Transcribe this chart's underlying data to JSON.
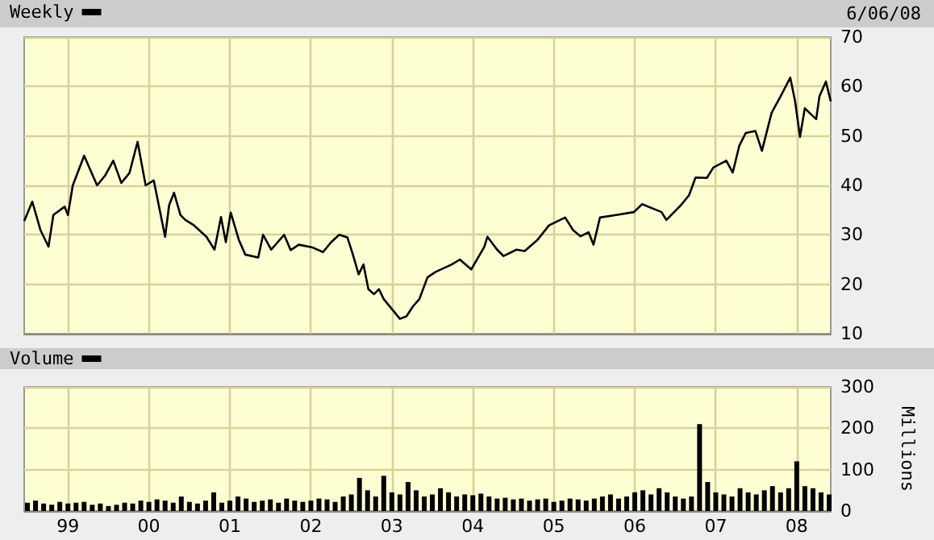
{
  "chart_data": [
    {
      "type": "line",
      "annotations": [
        "6/06/08"
      ],
      "legend": "top left",
      "grid": true,
      "tick_labels": "y",
      "xlim": [
        1998.46,
        2008.42
      ],
      "xticks": [
        {
          "value": 1999,
          "label": null
        },
        {
          "value": 2000,
          "label": null
        },
        {
          "value": 2001,
          "label": null
        },
        {
          "value": 2002,
          "label": null
        },
        {
          "value": 2003,
          "label": null
        },
        {
          "value": 2004,
          "label": null
        },
        {
          "value": 2005,
          "label": null
        },
        {
          "value": 2006,
          "label": null
        },
        {
          "value": 2007,
          "label": null
        },
        {
          "value": 2008,
          "label": null
        }
      ],
      "ylim": [
        10,
        70
      ],
      "yticks": [
        10,
        20,
        30,
        40,
        50,
        60,
        70
      ],
      "series": [
        {
          "name": "Weekly",
          "color": "#000000",
          "x": [
            1998.46,
            1998.56,
            1998.66,
            1998.76,
            1998.82,
            1998.96,
            1999.0,
            1999.06,
            1999.2,
            1999.36,
            1999.46,
            1999.56,
            1999.66,
            1999.76,
            1999.86,
            1999.96,
            2000.06,
            2000.2,
            2000.25,
            2000.31,
            2000.39,
            2000.45,
            2000.55,
            2000.71,
            2000.81,
            2000.89,
            2000.95,
            2001.01,
            2001.11,
            2001.19,
            2001.35,
            2001.41,
            2001.51,
            2001.67,
            2001.75,
            2001.85,
            2002.01,
            2002.15,
            2002.25,
            2002.35,
            2002.45,
            2002.51,
            2002.59,
            2002.65,
            2002.71,
            2002.78,
            2002.84,
            2002.9,
            2003.0,
            2003.1,
            2003.18,
            2003.26,
            2003.34,
            2003.44,
            2003.54,
            2003.74,
            2003.84,
            2003.98,
            2004.14,
            2004.18,
            2004.3,
            2004.38,
            2004.54,
            2004.64,
            2004.8,
            2004.94,
            2005.14,
            2005.24,
            2005.33,
            2005.43,
            2005.49,
            2005.57,
            2005.77,
            2005.99,
            2006.09,
            2006.33,
            2006.39,
            2006.57,
            2006.67,
            2006.75,
            2006.89,
            2006.97,
            2007.13,
            2007.21,
            2007.29,
            2007.37,
            2007.49,
            2007.57,
            2007.69,
            2007.8,
            2007.92,
            2007.98,
            2008.04,
            2008.1,
            2008.24,
            2008.28,
            2008.36,
            2008.42
          ],
          "values": [
            32.8,
            36.7,
            31,
            27.6,
            34,
            35.7,
            34,
            40,
            46,
            40,
            42,
            45,
            40.5,
            42.5,
            48.8,
            40,
            41,
            29.6,
            36,
            38.5,
            34,
            33,
            32,
            29.6,
            27,
            33.6,
            28.5,
            34.5,
            29,
            26,
            25.4,
            30,
            27,
            30,
            26.9,
            28,
            27.5,
            26.5,
            28.5,
            30,
            29.5,
            26.5,
            22,
            24,
            19,
            18,
            19,
            17,
            15,
            13,
            13.5,
            15.5,
            17,
            21.4,
            22.5,
            24,
            25,
            23,
            27.5,
            29.6,
            27,
            25.7,
            27,
            26.7,
            29,
            31.9,
            33.5,
            30.9,
            29.7,
            30.5,
            28,
            33.5,
            34,
            34.6,
            36.2,
            34.6,
            33,
            36,
            38,
            41.6,
            41.5,
            43.6,
            45,
            42.6,
            48,
            50.6,
            51,
            47,
            54.7,
            58,
            61.8,
            57,
            49.8,
            55.6,
            53.4,
            58,
            61,
            57
          ]
        }
      ]
    },
    {
      "type": "bar",
      "ylabel": "Millions",
      "legend": "top left",
      "grid": true,
      "xlim": [
        1998.46,
        2008.42
      ],
      "xticks": [
        {
          "value": 1999,
          "label": "99"
        },
        {
          "value": 2000,
          "label": "00"
        },
        {
          "value": 2001,
          "label": "01"
        },
        {
          "value": 2002,
          "label": "02"
        },
        {
          "value": 2003,
          "label": "03"
        },
        {
          "value": 2004,
          "label": "04"
        },
        {
          "value": 2005,
          "label": "05"
        },
        {
          "value": 2006,
          "label": "06"
        },
        {
          "value": 2007,
          "label": "07"
        },
        {
          "value": 2008,
          "label": "08"
        }
      ],
      "ylim": [
        0,
        300
      ],
      "yticks": [
        0,
        100,
        200,
        300
      ],
      "series": [
        {
          "name": "Volume",
          "color": "#000000",
          "x": [
            1998.5,
            1998.6,
            1998.7,
            1998.8,
            1998.9,
            1999.0,
            1999.1,
            1999.2,
            1999.3,
            1999.4,
            1999.5,
            1999.6,
            1999.7,
            1999.8,
            1999.9,
            2000.0,
            2000.1,
            2000.2,
            2000.3,
            2000.4,
            2000.5,
            2000.6,
            2000.7,
            2000.8,
            2000.9,
            2001.0,
            2001.1,
            2001.2,
            2001.3,
            2001.4,
            2001.5,
            2001.6,
            2001.7,
            2001.8,
            2001.9,
            2002.0,
            2002.1,
            2002.2,
            2002.3,
            2002.4,
            2002.5,
            2002.6,
            2002.7,
            2002.8,
            2002.9,
            2003.0,
            2003.1,
            2003.2,
            2003.3,
            2003.4,
            2003.5,
            2003.6,
            2003.7,
            2003.8,
            2003.9,
            2004.0,
            2004.1,
            2004.2,
            2004.3,
            2004.4,
            2004.5,
            2004.6,
            2004.7,
            2004.8,
            2004.9,
            2005.0,
            2005.1,
            2005.2,
            2005.3,
            2005.4,
            2005.5,
            2005.6,
            2005.7,
            2005.8,
            2005.9,
            2006.0,
            2006.1,
            2006.2,
            2006.3,
            2006.4,
            2006.5,
            2006.6,
            2006.7,
            2006.8,
            2006.9,
            2007.0,
            2007.1,
            2007.2,
            2007.3,
            2007.4,
            2007.5,
            2007.6,
            2007.7,
            2007.8,
            2007.9,
            2008.0,
            2008.1,
            2008.2,
            2008.3,
            2008.4
          ],
          "values": [
            20,
            25,
            18,
            15,
            22,
            18,
            20,
            22,
            15,
            18,
            12,
            15,
            20,
            18,
            25,
            22,
            28,
            25,
            20,
            35,
            22,
            18,
            25,
            45,
            20,
            25,
            35,
            30,
            22,
            25,
            28,
            20,
            30,
            25,
            22,
            25,
            30,
            28,
            22,
            35,
            40,
            80,
            50,
            35,
            85,
            45,
            40,
            70,
            50,
            35,
            40,
            55,
            45,
            35,
            40,
            38,
            42,
            35,
            30,
            32,
            28,
            30,
            25,
            28,
            30,
            22,
            25,
            30,
            28,
            25,
            30,
            35,
            40,
            30,
            35,
            45,
            50,
            40,
            55,
            45,
            35,
            30,
            35,
            210,
            70,
            45,
            40,
            35,
            55,
            45,
            40,
            50,
            60,
            45,
            55,
            120,
            60,
            55,
            45,
            40
          ]
        }
      ]
    }
  ]
}
